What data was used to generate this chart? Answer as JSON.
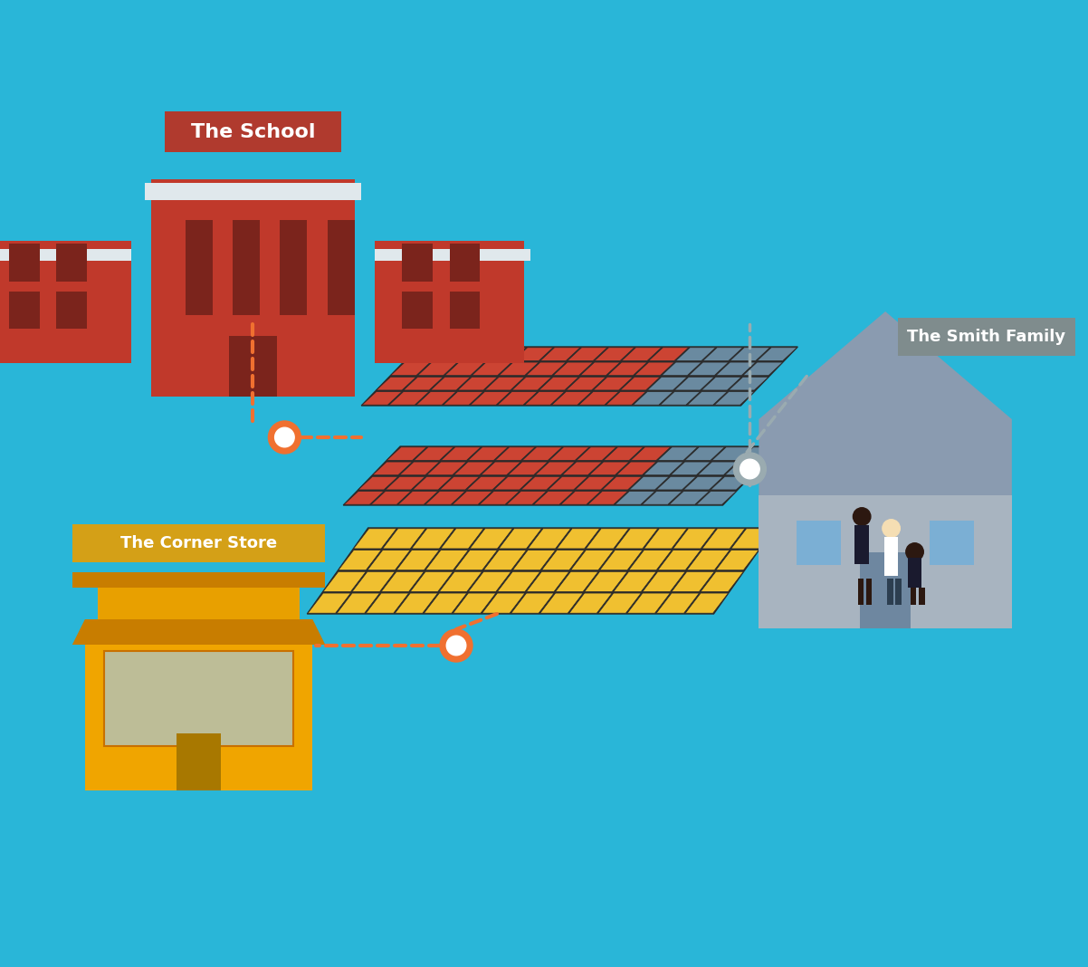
{
  "bg_color": "#29B6D8",
  "school_label": "The School",
  "school_label_bg": "#B03A2E",
  "house_label": "The Smith Family",
  "house_label_bg": "#7F8C8D",
  "store_label": "The Corner Store",
  "store_label_bg": "#D4A017",
  "school_color_main": "#C0392B",
  "school_color_dark": "#7B241C",
  "school_color_light": "#E8E8E8",
  "house_color_wall": "#A8B4C0",
  "house_color_roof": "#8A9BB0",
  "house_color_door": "#6E87A0",
  "house_color_window": "#7BAFD4",
  "store_color_main": "#F0A500",
  "store_color_dark": "#C87D00",
  "store_color_window": "#A8C8D8",
  "solar_color_red": "#CC4433",
  "solar_color_yellow": "#F0C030",
  "solar_color_gray": "#6A8AA0",
  "solar_color_dark": "#2A2A2A",
  "connection_orange": "#F07030",
  "connection_gray": "#9AABB0"
}
